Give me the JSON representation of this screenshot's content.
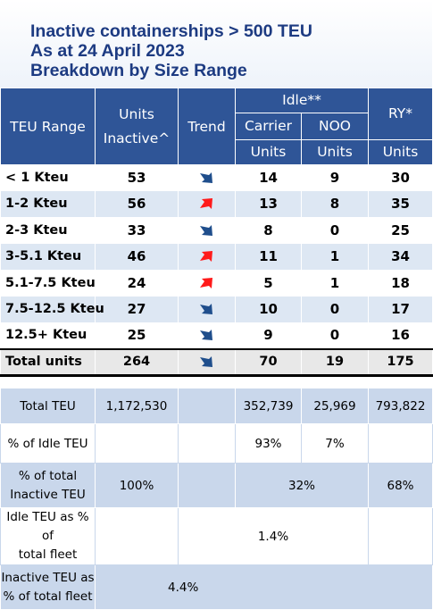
{
  "title": {
    "line1": "Inactive containerships > 500 TEU",
    "line2": "As at 24 April 2023",
    "line3": "Breakdown by Size Range"
  },
  "header": {
    "teu_range": "TEU Range",
    "units_inactive_1": "Units",
    "units_inactive_2": "Inactive^",
    "trend": "Trend",
    "idle": "Idle**",
    "carrier": "Carrier",
    "noo": "NOO",
    "ry": "RY*",
    "units": "Units"
  },
  "rows": [
    {
      "range": "< 1 Kteu",
      "inactive": "53",
      "trend": "down",
      "carrier": "14",
      "noo": "9",
      "ry": "30"
    },
    {
      "range": "1-2 Kteu",
      "inactive": "56",
      "trend": "up",
      "carrier": "13",
      "noo": "8",
      "ry": "35"
    },
    {
      "range": "2-3 Kteu",
      "inactive": "33",
      "trend": "down",
      "carrier": "8",
      "noo": "0",
      "ry": "25"
    },
    {
      "range": "3-5.1 Kteu",
      "inactive": "46",
      "trend": "up",
      "carrier": "11",
      "noo": "1",
      "ry": "34"
    },
    {
      "range": "5.1-7.5 Kteu",
      "inactive": "24",
      "trend": "up",
      "carrier": "5",
      "noo": "1",
      "ry": "18"
    },
    {
      "range": "7.5-12.5 Kteu",
      "inactive": "27",
      "trend": "down",
      "carrier": "10",
      "noo": "0",
      "ry": "17"
    },
    {
      "range": "12.5+ Kteu",
      "inactive": "25",
      "trend": "down",
      "carrier": "9",
      "noo": "0",
      "ry": "16"
    }
  ],
  "total": {
    "label": "Total units",
    "inactive": "264",
    "trend": "down",
    "carrier": "70",
    "noo": "19",
    "ry": "175"
  },
  "stats": {
    "total_teu": {
      "label": "Total TEU",
      "inactive": "1,172,530",
      "carrier": "352,739",
      "noo": "25,969",
      "ry": "793,822"
    },
    "pct_idle": {
      "label1": "% of Idle TEU",
      "carrier": "93%",
      "noo": "7%"
    },
    "pct_total": {
      "label1": "% of total",
      "label2": "Inactive TEU",
      "inactive": "100%",
      "idle": "32%",
      "ry": "68%"
    },
    "idle_fleet": {
      "label1": "Idle TEU as % of",
      "label2": "total fleet",
      "value": "1.4%"
    },
    "inactive_fleet": {
      "label1": "Inactive TEU as",
      "label2": "% of total fleet",
      "value": "4.4%"
    }
  },
  "colors": {
    "header_blue": "#2f5597",
    "title_blue": "#1d3b82",
    "row_stripe": "#dde7f3",
    "arrow_down": "#1f4e8c",
    "arrow_up": "#ff1a1a"
  }
}
